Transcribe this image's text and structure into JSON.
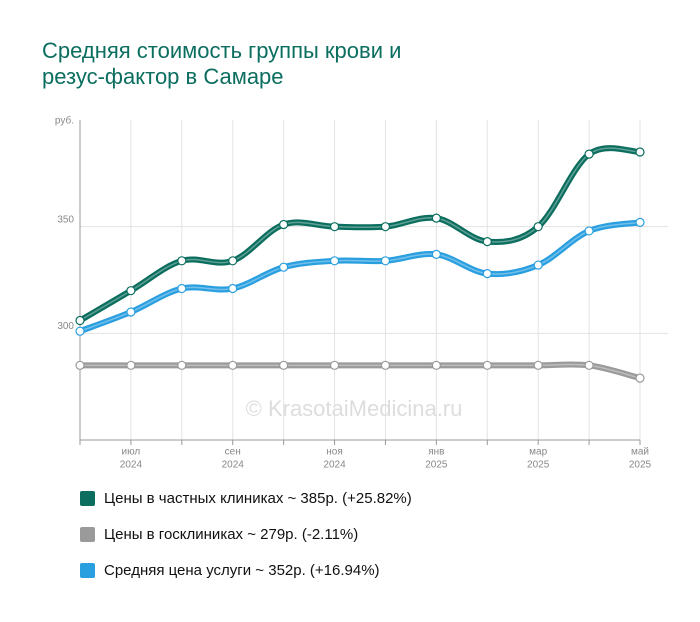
{
  "chart_data": {
    "type": "line",
    "title_lines": [
      "Средняя стоимость группы крови и",
      "резус-фактор в Самаре"
    ],
    "y_unit": "руб.",
    "watermark": "© KrasotaiMedicina.ru",
    "categories": [
      null,
      "июл",
      null,
      "сен",
      null,
      "ноя",
      null,
      "янв",
      null,
      "мар",
      null,
      "май"
    ],
    "category_years": [
      null,
      "2024",
      null,
      "2024",
      null,
      "2024",
      null,
      "2025",
      null,
      "2025",
      null,
      "2025"
    ],
    "ylim": [
      250,
      400
    ],
    "yticks": [
      300,
      350
    ],
    "grid": true,
    "series": [
      {
        "name": "Цены в частных клиниках ~ 385р. (+25.82%)",
        "color": "#0b6e5f",
        "values": [
          306,
          320,
          334,
          334,
          351,
          350,
          350,
          354,
          343,
          350,
          384,
          385
        ]
      },
      {
        "name": "Цены в госклиниках ~ 279р. (-2.11%)",
        "color": "#9a9a9a",
        "values": [
          285,
          285,
          285,
          285,
          285,
          285,
          285,
          285,
          285,
          285,
          285,
          279
        ]
      },
      {
        "name": "Средняя цена услуги ~ 352р. (+16.94%)",
        "color": "#2a9fe0",
        "values": [
          301,
          310,
          321,
          321,
          331,
          334,
          334,
          337,
          328,
          332,
          348,
          352
        ]
      }
    ]
  }
}
